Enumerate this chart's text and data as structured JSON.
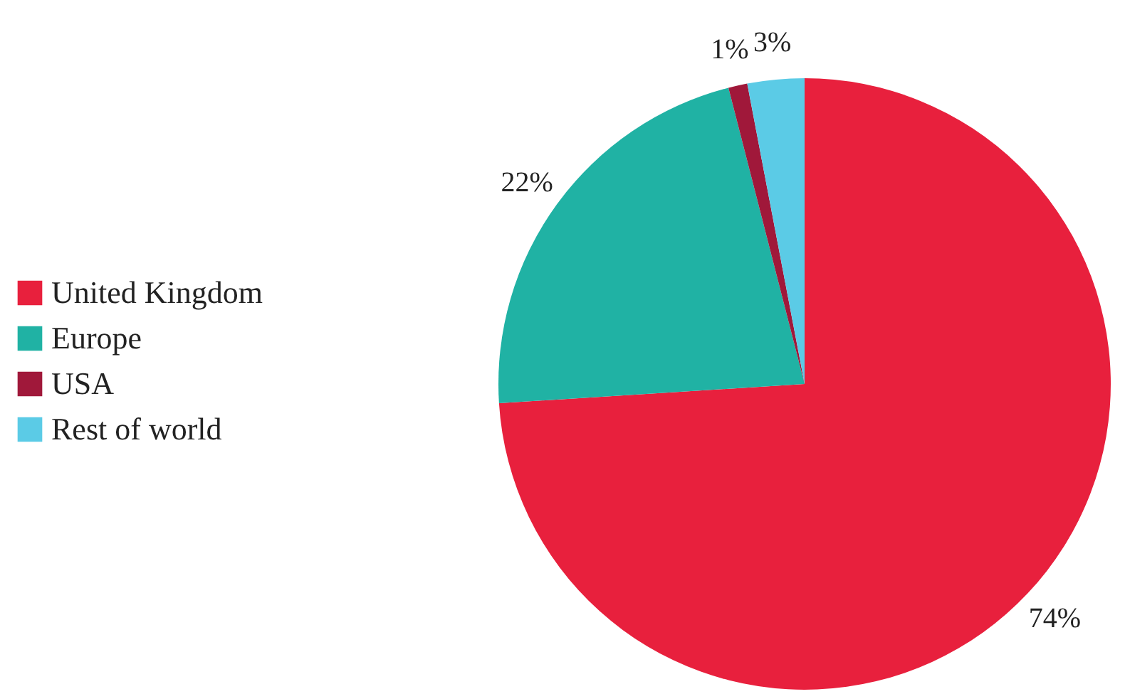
{
  "chart_data": {
    "type": "pie",
    "categories": [
      "United Kingdom",
      "Europe",
      "USA",
      "Rest of world"
    ],
    "values": [
      74,
      22,
      1,
      3
    ],
    "colors": [
      "#e8203d",
      "#20b2a4",
      "#a0183a",
      "#5bcbe6"
    ],
    "value_labels": [
      "74%",
      "22%",
      "1%",
      "3%"
    ],
    "legend": "left"
  }
}
